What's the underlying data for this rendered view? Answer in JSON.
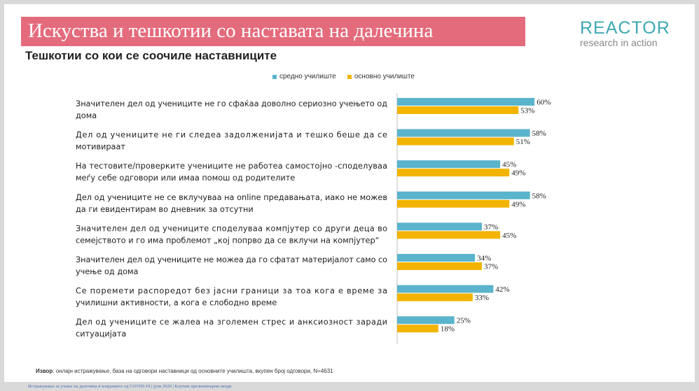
{
  "header": {
    "title": "Искуства и тешкотии со наставата на далечина",
    "subtitle": "Тешкотии со кои се соочиле наставниците"
  },
  "logo": {
    "name": "REACTOR",
    "tagline": "research in action"
  },
  "colors": {
    "title_bg": "#e46b7c",
    "series1": "#5ab4cc",
    "series2": "#f2b400",
    "logo": "#3fa8b2"
  },
  "chart_data": {
    "type": "bar",
    "orientation": "horizontal",
    "xlim": [
      0,
      100
    ],
    "categories": [
      [
        "Значителен дел од учениците не го сфаќаа доволно сериозно учењето од",
        "дома"
      ],
      [
        "Дел од учениците не ги следеа задолженијата и тешко беше да се",
        "мотивираат"
      ],
      [
        "На тестовите/проверките учениците не работеа самостојно -споделуваа",
        "меѓу себе одговори или имаа помош од родителите"
      ],
      [
        "Дел од учениците не се вклучуваа на online предавањата, иако не можев",
        "да ги евидентирам во дневник за отсутни"
      ],
      [
        "Значителен дел од учениците споделуваа компјутер со други деца во",
        "семејството и го има проблемот „кој попрво да се вклучи на компјутер“"
      ],
      [
        "Значителен дел од учениците не можеа да го сфатат материјалот само со",
        "учење од дома"
      ],
      [
        "Се поремети распоредот без јасни граници за тоа кога е време за",
        "училишни активности, а кога е слободно време"
      ],
      [
        "Дел од учениците се жалеа на зголемен стрес и анксиозност заради",
        "ситуацијата"
      ]
    ],
    "series": [
      {
        "name": "средно училиште",
        "values": [
          60,
          58,
          45,
          58,
          37,
          34,
          42,
          25
        ]
      },
      {
        "name": "основно училиште",
        "values": [
          53,
          51,
          49,
          49,
          45,
          37,
          33,
          18
        ]
      }
    ],
    "value_suffix": "%"
  },
  "source": {
    "label": "Извор",
    "text": ": онлајн истражување, база на одговори наставници од основните училишта, вкупен број одговори, N=4631"
  },
  "footer": {
    "text": "Истражување за учење на далечина и влијанието од COVID-19   |  јули 2020 |  Клучни прелиминарни наоди"
  }
}
